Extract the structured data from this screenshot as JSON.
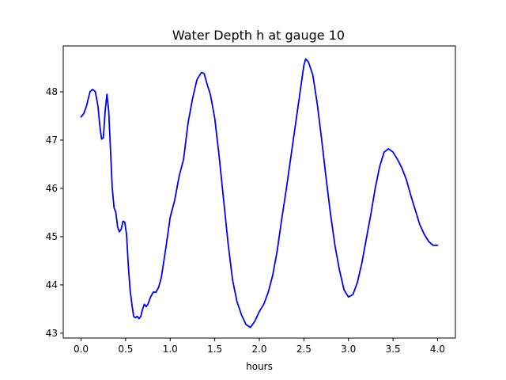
{
  "chart_data": {
    "type": "line",
    "title": "Water Depth h at gauge 10",
    "xlabel": "hours",
    "ylabel": "",
    "xlim": [
      -0.2,
      4.2
    ],
    "ylim": [
      42.9,
      48.95
    ],
    "xticks": [
      0.0,
      0.5,
      1.0,
      1.5,
      2.0,
      2.5,
      3.0,
      3.5,
      4.0
    ],
    "xtick_labels": [
      "0.0",
      "0.5",
      "1.0",
      "1.5",
      "2.0",
      "2.5",
      "3.0",
      "3.5",
      "4.0"
    ],
    "yticks": [
      43,
      44,
      45,
      46,
      47,
      48
    ],
    "ytick_labels": [
      "43",
      "44",
      "45",
      "46",
      "47",
      "48"
    ],
    "grid": false,
    "series": [
      {
        "color": "#0000ff",
        "x": [
          0.0,
          0.03,
          0.06,
          0.08,
          0.1,
          0.13,
          0.16,
          0.19,
          0.21,
          0.23,
          0.25,
          0.27,
          0.29,
          0.31,
          0.33,
          0.35,
          0.37,
          0.39,
          0.41,
          0.43,
          0.45,
          0.47,
          0.49,
          0.51,
          0.53,
          0.55,
          0.57,
          0.59,
          0.61,
          0.63,
          0.65,
          0.67,
          0.69,
          0.71,
          0.73,
          0.75,
          0.78,
          0.81,
          0.84,
          0.87,
          0.9,
          0.95,
          1.0,
          1.05,
          1.1,
          1.15,
          1.2,
          1.25,
          1.3,
          1.35,
          1.38,
          1.4,
          1.42,
          1.45,
          1.5,
          1.55,
          1.6,
          1.65,
          1.7,
          1.75,
          1.8,
          1.85,
          1.9,
          1.95,
          2.0,
          2.05,
          2.1,
          2.15,
          2.2,
          2.25,
          2.3,
          2.35,
          2.4,
          2.45,
          2.5,
          2.52,
          2.55,
          2.6,
          2.65,
          2.7,
          2.75,
          2.8,
          2.85,
          2.9,
          2.95,
          3.0,
          3.05,
          3.1,
          3.15,
          3.2,
          3.25,
          3.3,
          3.35,
          3.4,
          3.45,
          3.5,
          3.55,
          3.6,
          3.65,
          3.7,
          3.75,
          3.8,
          3.85,
          3.9,
          3.95,
          4.0
        ],
        "y": [
          47.48,
          47.55,
          47.7,
          47.85,
          48.0,
          48.05,
          48.0,
          47.7,
          47.3,
          47.02,
          47.05,
          47.6,
          47.95,
          47.6,
          46.8,
          46.0,
          45.6,
          45.5,
          45.2,
          45.1,
          45.15,
          45.32,
          45.3,
          45.05,
          44.4,
          43.9,
          43.6,
          43.35,
          43.32,
          43.35,
          43.3,
          43.35,
          43.5,
          43.6,
          43.55,
          43.6,
          43.75,
          43.85,
          43.85,
          43.95,
          44.15,
          44.75,
          45.4,
          45.75,
          46.25,
          46.6,
          47.35,
          47.85,
          48.25,
          48.4,
          48.38,
          48.25,
          48.12,
          47.95,
          47.45,
          46.65,
          45.75,
          44.85,
          44.1,
          43.65,
          43.38,
          43.18,
          43.12,
          43.25,
          43.45,
          43.6,
          43.85,
          44.2,
          44.7,
          45.35,
          45.95,
          46.6,
          47.25,
          47.9,
          48.55,
          48.68,
          48.62,
          48.35,
          47.75,
          47.0,
          46.2,
          45.45,
          44.8,
          44.3,
          43.9,
          43.75,
          43.8,
          44.05,
          44.45,
          44.95,
          45.45,
          46.0,
          46.45,
          46.75,
          46.82,
          46.75,
          46.6,
          46.42,
          46.18,
          45.85,
          45.55,
          45.25,
          45.05,
          44.9,
          44.82,
          44.82
        ]
      }
    ]
  }
}
